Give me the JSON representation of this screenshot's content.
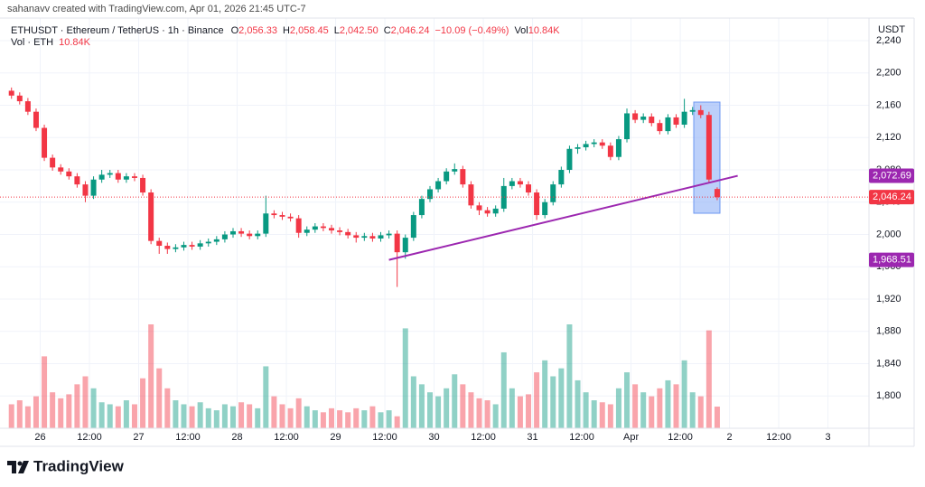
{
  "watermark": "sahanavv created with TradingView.com, Apr 01, 2026 21:45 UTC-7",
  "brand": "TradingView",
  "chart_data": {
    "type": "candlestick",
    "symbol": "ETHUSDT · Ethereum / TetherUS · 1h · Binance",
    "legend": [
      {
        "key": "O",
        "value": "2,056.33"
      },
      {
        "key": "H",
        "value": "2,058.45"
      },
      {
        "key": "L",
        "value": "2,042.50"
      },
      {
        "key": "C",
        "value": "2,046.24"
      }
    ],
    "change": "−10.09 (−0.49%)",
    "vol_key": "Vol",
    "vol_value": "10.84K",
    "volume_name": "Vol · ETH",
    "currency": "USDT",
    "up_color": "#089981",
    "down_color": "#f23645",
    "grid": true,
    "x": [
      1,
      3,
      5,
      7,
      9,
      11,
      13,
      15,
      17,
      19,
      21,
      23,
      25,
      27,
      29,
      31,
      33,
      35,
      37,
      39,
      41,
      43,
      45,
      47,
      49,
      51,
      53,
      55,
      57,
      59,
      61,
      63,
      65,
      67,
      69,
      71,
      73,
      75,
      77,
      79,
      81,
      83,
      85,
      87,
      89,
      91,
      93,
      95,
      97,
      99,
      101,
      103,
      105,
      107,
      109,
      111,
      113,
      115,
      117,
      119,
      121,
      123,
      125,
      127,
      129,
      131,
      133,
      135,
      137,
      139,
      141,
      143,
      145,
      147,
      149,
      151,
      153,
      155,
      157,
      159,
      161,
      163,
      165,
      167,
      169,
      171,
      173
    ],
    "open": [
      2178,
      2172,
      2165,
      2152,
      2132,
      2095,
      2083,
      2078,
      2072,
      2062,
      2048,
      2068,
      2074,
      2076,
      2068,
      2072,
      2070,
      2052,
      1992,
      1986,
      1982,
      1984,
      1987,
      1985,
      1989,
      1991,
      1994,
      2000,
      2004,
      2001,
      1998,
      2001,
      2026,
      2024,
      2022,
      2020,
      2002,
      2006,
      2010,
      2008,
      2005,
      2003,
      1999,
      1996,
      1998,
      1995,
      1999,
      2001,
      1978,
      1996,
      2024,
      2044,
      2056,
      2066,
      2078,
      2081,
      2062,
      2036,
      2030,
      2026,
      2032,
      2060,
      2066,
      2062,
      2052,
      2024,
      2040,
      2062,
      2080,
      2106,
      2108,
      2112,
      2114,
      2110,
      2096,
      2118,
      2150,
      2142,
      2146,
      2138,
      2128,
      2145,
      2136,
      2152,
      2154,
      2148,
      2056.33
    ],
    "high": [
      2182,
      2176,
      2169,
      2156,
      2136,
      2099,
      2087,
      2082,
      2076,
      2066,
      2072,
      2080,
      2080,
      2080,
      2076,
      2076,
      2074,
      2056,
      1996,
      1990,
      1988,
      1991,
      1991,
      1993,
      1995,
      1998,
      2004,
      2008,
      2008,
      2005,
      2005,
      2048,
      2030,
      2028,
      2026,
      2024,
      2010,
      2014,
      2014,
      2012,
      2009,
      2007,
      2003,
      2002,
      2002,
      2003,
      2005,
      2005,
      2000,
      2028,
      2048,
      2060,
      2070,
      2082,
      2088,
      2085,
      2066,
      2040,
      2034,
      2036,
      2070,
      2070,
      2070,
      2066,
      2056,
      2044,
      2066,
      2084,
      2110,
      2112,
      2116,
      2118,
      2118,
      2114,
      2122,
      2156,
      2154,
      2150,
      2150,
      2142,
      2149,
      2149,
      2168,
      2158,
      2160,
      2152,
      2058.45
    ],
    "low": [
      2168,
      2161,
      2148,
      2128,
      2091,
      2079,
      2074,
      2068,
      2058,
      2040,
      2044,
      2064,
      2070,
      2064,
      2064,
      2066,
      2048,
      1988,
      1976,
      1976,
      1978,
      1980,
      1981,
      1981,
      1985,
      1987,
      1990,
      1996,
      1997,
      1994,
      1994,
      1997,
      2020,
      2018,
      2016,
      1996,
      1998,
      2002,
      2004,
      2001,
      1999,
      1995,
      1990,
      1992,
      1991,
      1991,
      1995,
      1935,
      1970,
      1992,
      2020,
      2040,
      2052,
      2062,
      2074,
      2058,
      2032,
      2024,
      2022,
      2022,
      2028,
      2056,
      2058,
      2048,
      2018,
      2020,
      2036,
      2058,
      2076,
      2100,
      2104,
      2108,
      2106,
      2092,
      2092,
      2114,
      2138,
      2138,
      2134,
      2124,
      2124,
      2132,
      2132,
      2148,
      2144,
      2064,
      2042.5
    ],
    "close": [
      2172,
      2165,
      2152,
      2132,
      2095,
      2083,
      2078,
      2072,
      2062,
      2048,
      2068,
      2074,
      2076,
      2068,
      2072,
      2070,
      2052,
      1992,
      1986,
      1982,
      1984,
      1987,
      1985,
      1989,
      1991,
      1994,
      2000,
      2004,
      2001,
      1998,
      2001,
      2026,
      2024,
      2022,
      2020,
      2002,
      2006,
      2010,
      2008,
      2005,
      2003,
      1999,
      1996,
      1998,
      1995,
      1999,
      2001,
      1978,
      1996,
      2024,
      2044,
      2056,
      2066,
      2078,
      2081,
      2062,
      2036,
      2030,
      2026,
      2032,
      2060,
      2066,
      2062,
      2052,
      2024,
      2040,
      2062,
      2080,
      2106,
      2108,
      2112,
      2114,
      2110,
      2096,
      2118,
      2150,
      2142,
      2146,
      2138,
      2128,
      2145,
      2136,
      2152,
      2154,
      2148,
      2068,
      2046.24
    ],
    "volume": [
      12000,
      14000,
      11000,
      16000,
      36000,
      18000,
      15000,
      17000,
      22000,
      26000,
      20000,
      13000,
      12000,
      11000,
      14000,
      12000,
      25000,
      52000,
      30000,
      20000,
      14000,
      12000,
      11000,
      13000,
      10000,
      9000,
      12000,
      11000,
      13000,
      12000,
      10000,
      31000,
      16000,
      12000,
      10000,
      15000,
      11000,
      9000,
      8000,
      10000,
      9000,
      8000,
      10000,
      9000,
      11000,
      8000,
      9000,
      6000,
      50000,
      26000,
      22000,
      18000,
      16000,
      20000,
      27000,
      22000,
      18000,
      15000,
      14000,
      12000,
      38000,
      20000,
      16000,
      17000,
      28000,
      34000,
      26000,
      30000,
      52000,
      24000,
      18000,
      14000,
      13000,
      12000,
      20000,
      28000,
      22000,
      18000,
      16000,
      20000,
      24000,
      22000,
      34000,
      18000,
      16000,
      49000,
      10840
    ],
    "trendline": {
      "x": [
        93,
        178
      ],
      "y": [
        1968.51,
        2072.69
      ],
      "labels": [
        "1,968.51",
        "2,072.69"
      ],
      "color": "#9c27b0"
    },
    "xlim": [
      -1.8,
      210
    ],
    "xticks": [
      {
        "value": 8,
        "label": "26"
      },
      {
        "value": 20,
        "label": "12:00"
      },
      {
        "value": 32,
        "label": "27"
      },
      {
        "value": 44,
        "label": "12:00"
      },
      {
        "value": 56,
        "label": "28"
      },
      {
        "value": 68,
        "label": "12:00"
      },
      {
        "value": 80,
        "label": "29"
      },
      {
        "value": 92,
        "label": "12:00"
      },
      {
        "value": 104,
        "label": "30"
      },
      {
        "value": 116,
        "label": "12:00"
      },
      {
        "value": 128,
        "label": "31"
      },
      {
        "value": 140,
        "label": "12:00"
      },
      {
        "value": 152,
        "label": "Apr"
      },
      {
        "value": 164,
        "label": "12:00"
      },
      {
        "value": 176,
        "label": "2"
      },
      {
        "value": 188,
        "label": "12:00"
      },
      {
        "value": 200,
        "label": "3"
      }
    ],
    "ylim": [
      1760,
      2268
    ],
    "yticks": [
      {
        "value": 1800,
        "label": "1,800"
      },
      {
        "value": 1840,
        "label": "1,840"
      },
      {
        "value": 1880,
        "label": "1,880"
      },
      {
        "value": 1920,
        "label": "1,920"
      },
      {
        "value": 1960,
        "label": "1,960"
      },
      {
        "value": 2000,
        "label": "2,000"
      },
      {
        "value": 2040,
        "label": "2,040"
      },
      {
        "value": 2080,
        "label": "2,080"
      },
      {
        "value": 2120,
        "label": "2,120"
      },
      {
        "value": 2160,
        "label": "2,160"
      },
      {
        "value": 2200,
        "label": "2,200"
      },
      {
        "value": 2240,
        "label": "2,240"
      }
    ]
  }
}
